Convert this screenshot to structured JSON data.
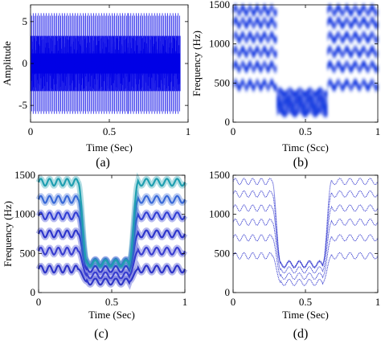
{
  "chart_data": [
    {
      "id": "a",
      "type": "line",
      "caption": "(a)",
      "xlabel": "Time (Sec)",
      "ylabel": "Amplitude",
      "xlim": [
        0,
        1
      ],
      "ylim": [
        -7,
        7
      ],
      "xticks": [
        0,
        0.5,
        1
      ],
      "xtick_labels": [
        "0",
        "0.5",
        "1"
      ],
      "yticks": [
        -5,
        0,
        5
      ],
      "ytick_labels": [
        "-5",
        "0",
        "5"
      ],
      "grid": false,
      "line_color": "#0000e6",
      "segments": [
        {
          "t_start": 0.0,
          "t_end": 0.3,
          "envelope": [
            -6,
            6
          ],
          "dense_band": [
            -1.2,
            1.2
          ],
          "burst_interval": 0.0167
        },
        {
          "t_start": 0.3,
          "t_end": 0.62,
          "envelope": [
            -6,
            6
          ],
          "dense_band": [
            -1.2,
            1.2
          ],
          "burst_interval": 0.0167
        },
        {
          "t_start": 0.62,
          "t_end": 0.95,
          "envelope": [
            -6,
            6
          ],
          "dense_band": [
            -1.2,
            1.2
          ],
          "burst_interval": 0.0167
        }
      ]
    },
    {
      "id": "b",
      "type": "heatmap",
      "caption": "(b)",
      "xlabel": "Timc (Scc)",
      "ylabel": "Frequency (Hz)",
      "xlim": [
        0,
        1
      ],
      "ylim": [
        0,
        1500
      ],
      "xticks": [
        0,
        0.5,
        1
      ],
      "xtick_labels": [
        "0",
        "0.5",
        "1"
      ],
      "yticks": [
        0,
        500,
        1000,
        1500
      ],
      "ytick_labels": [
        "0",
        "500",
        "1000",
        "1500"
      ],
      "color": "#1a3ce0",
      "segments": [
        {
          "t_start": 0.0,
          "t_end": 0.3,
          "component_centers_hz": [
            475,
            710,
            900,
            1085,
            1270,
            1430
          ],
          "ripple_hz": 40,
          "ripple_cycles": 6
        },
        {
          "t_start": 0.3,
          "t_end": 0.65,
          "component_centers_hz": [
            130,
            210,
            290,
            380
          ],
          "ripple_hz": 25,
          "ripple_cycles": 5
        },
        {
          "t_start": 0.65,
          "t_end": 1.0,
          "component_centers_hz": [
            475,
            710,
            900,
            1085,
            1270,
            1430
          ],
          "ripple_hz": 40,
          "ripple_cycles": 6
        }
      ]
    },
    {
      "id": "c",
      "type": "line",
      "caption": "(c)",
      "xlabel": "Time (Sec)",
      "ylabel": "Frequency (Hz)",
      "xlim": [
        0,
        1
      ],
      "ylim": [
        0,
        1500
      ],
      "xticks": [
        0,
        0.5,
        1
      ],
      "xtick_labels": [
        "0",
        "0.5",
        "1"
      ],
      "yticks": [
        0,
        500,
        1000,
        1500
      ],
      "ytick_labels": [
        "0",
        "500",
        "1000",
        "1500"
      ],
      "grid": false,
      "colors": [
        "#2e35c8",
        "#3a3fd0",
        "#2f36cc",
        "#3440d4",
        "#3a6ad8",
        "#1f9fb0"
      ],
      "segments": [
        {
          "t_start": 0.0,
          "t_end": 0.3,
          "component_centers_hz": [
            300,
            530,
            750,
            980,
            1190,
            1410
          ],
          "ripple_hz": 45,
          "ripple_cycles": 5
        },
        {
          "t_start": 0.3,
          "t_end": 0.65,
          "component_centers_hz": [
            140,
            220,
            300,
            390
          ],
          "ripple_hz": 40,
          "ripple_cycles": 5
        },
        {
          "t_start": 0.65,
          "t_end": 1.0,
          "component_centers_hz": [
            300,
            530,
            750,
            980,
            1190,
            1410
          ],
          "ripple_hz": 45,
          "ripple_cycles": 5
        }
      ]
    },
    {
      "id": "d",
      "type": "line",
      "caption": "(d)",
      "xlabel": "Time (Sec)",
      "ylabel": "",
      "xlim": [
        0,
        1
      ],
      "ylim": [
        0,
        1500
      ],
      "xticks": [
        0,
        0.5,
        1
      ],
      "xtick_labels": [
        "0",
        "0.5",
        "1"
      ],
      "yticks": [
        0,
        500,
        1000,
        1500
      ],
      "ytick_labels": [
        "0",
        "500",
        "1000",
        "1500"
      ],
      "grid": false,
      "colors": [
        "#3a3fd0",
        "#3a3fd0",
        "#3a3fd0",
        "#3a3fd0",
        "#3a3fd0",
        "#3a3fd0"
      ],
      "segments": [
        {
          "t_start": 0.0,
          "t_end": 0.3,
          "component_centers_hz": [
            470,
            700,
            900,
            1080,
            1260,
            1420
          ],
          "ripple_hz": 40,
          "ripple_cycles": 5
        },
        {
          "t_start": 0.3,
          "t_end": 0.65,
          "component_centers_hz": [
            130,
            210,
            290,
            370
          ],
          "ripple_hz": 40,
          "ripple_cycles": 5
        },
        {
          "t_start": 0.65,
          "t_end": 1.0,
          "component_centers_hz": [
            470,
            700,
            900,
            1080,
            1260,
            1420
          ],
          "ripple_hz": 40,
          "ripple_cycles": 5
        }
      ]
    }
  ]
}
